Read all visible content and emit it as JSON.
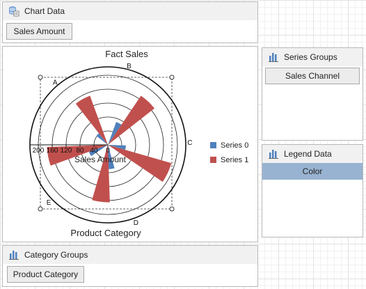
{
  "chart_data_panel": {
    "title": "Chart Data",
    "icon": "database-icon",
    "fields": [
      {
        "label": "Sales Amount"
      }
    ]
  },
  "chart": {
    "chart_data": {
      "type": "polar-bar",
      "title": "Fact Sales",
      "categories": [
        "A",
        "B",
        "C",
        "D",
        "E"
      ],
      "axis_label": "Sales Amount",
      "radial_ticks": [
        "200",
        "160",
        "120",
        "80",
        "40",
        "0"
      ],
      "radial_max": 200,
      "category_axis_label": "Product Category",
      "legend_position": "right",
      "series": [
        {
          "name": "Series 0",
          "color": "#4f81bd",
          "values": [
            70,
            52,
            70,
            58,
            42
          ]
        },
        {
          "name": "Series 1",
          "color": "#c0504d",
          "values": [
            170,
            190,
            165,
            175,
            150
          ]
        }
      ]
    }
  },
  "series_groups_panel": {
    "title": "Series Groups",
    "icon": "bar-chart-icon",
    "fields": [
      {
        "label": "Sales Channel"
      }
    ]
  },
  "legend_data_panel": {
    "title": "Legend Data",
    "icon": "bar-chart-icon",
    "fields": [
      {
        "label": "Color",
        "selected": true
      }
    ]
  },
  "category_groups_panel": {
    "title": "Category Groups",
    "icon": "bar-chart-icon",
    "fields": [
      {
        "label": "Product Category"
      }
    ]
  }
}
